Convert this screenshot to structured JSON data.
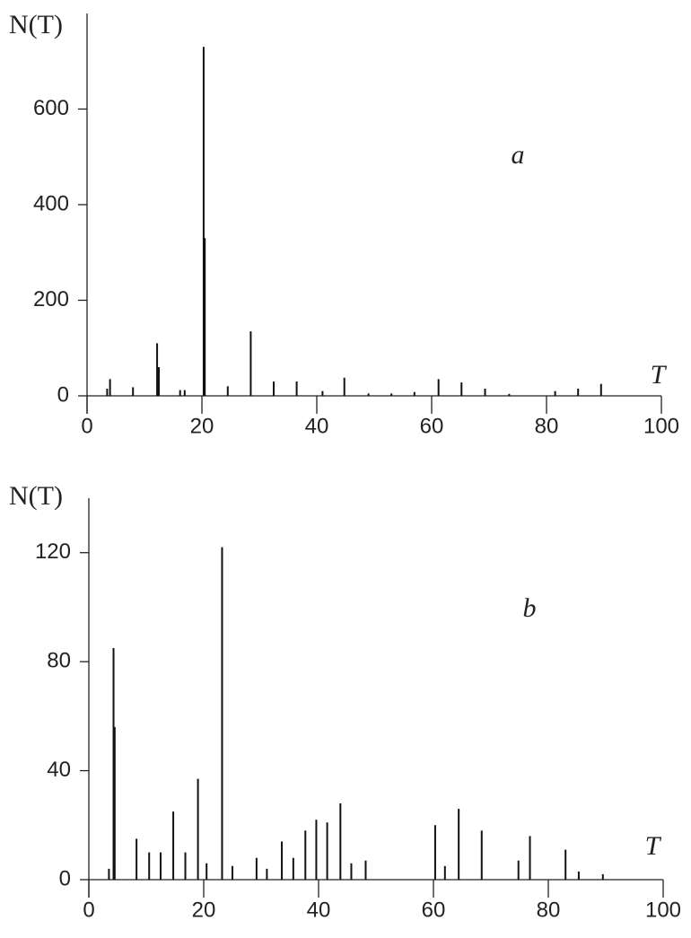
{
  "chart_data": [
    {
      "type": "stem",
      "y_label": "N(T)",
      "x_label": "T",
      "panel": "a",
      "color": "#111111",
      "x": [
        3.5,
        4,
        8,
        12.2,
        12.5,
        16.2,
        17,
        20.3,
        20.5,
        24.5,
        28.5,
        32.5,
        36.5,
        41,
        44.8,
        49,
        53,
        57,
        61.2,
        65.2,
        69.3,
        73.5,
        81.5,
        85.5,
        89.5
      ],
      "values": [
        15,
        35,
        18,
        110,
        60,
        12,
        12,
        730,
        330,
        20,
        135,
        30,
        30,
        10,
        38,
        5,
        5,
        8,
        35,
        28,
        15,
        4,
        10,
        15,
        25
      ],
      "xlim": [
        0,
        100
      ],
      "ylim": [
        0,
        800
      ],
      "xticks": [
        0,
        20,
        40,
        60,
        80,
        100
      ],
      "yticks": [
        0,
        200,
        400,
        600
      ]
    },
    {
      "type": "stem",
      "y_label": "N(T)",
      "x_label": "T",
      "panel": "b",
      "color": "#111111",
      "x": [
        3.5,
        4.3,
        4.5,
        8.3,
        10.5,
        12.5,
        14.7,
        16.8,
        19,
        20.5,
        23.2,
        25,
        29.2,
        31,
        33.6,
        35.6,
        37.7,
        39.6,
        41.5,
        43.8,
        45.7,
        48.2,
        60.3,
        62,
        64.4,
        68.4,
        74.8,
        76.8,
        83,
        85.3,
        89.5
      ],
      "values": [
        4,
        85,
        56,
        15,
        10,
        10,
        25,
        10,
        37,
        6,
        122,
        5,
        8,
        4,
        14,
        8,
        18,
        22,
        21,
        28,
        6,
        7,
        20,
        5,
        26,
        18,
        7,
        16,
        11,
        3,
        2
      ],
      "xlim": [
        0,
        100
      ],
      "ylim": [
        0,
        140
      ],
      "xticks": [
        0,
        20,
        40,
        60,
        80,
        100
      ],
      "yticks": [
        0,
        40,
        80,
        120
      ]
    }
  ]
}
